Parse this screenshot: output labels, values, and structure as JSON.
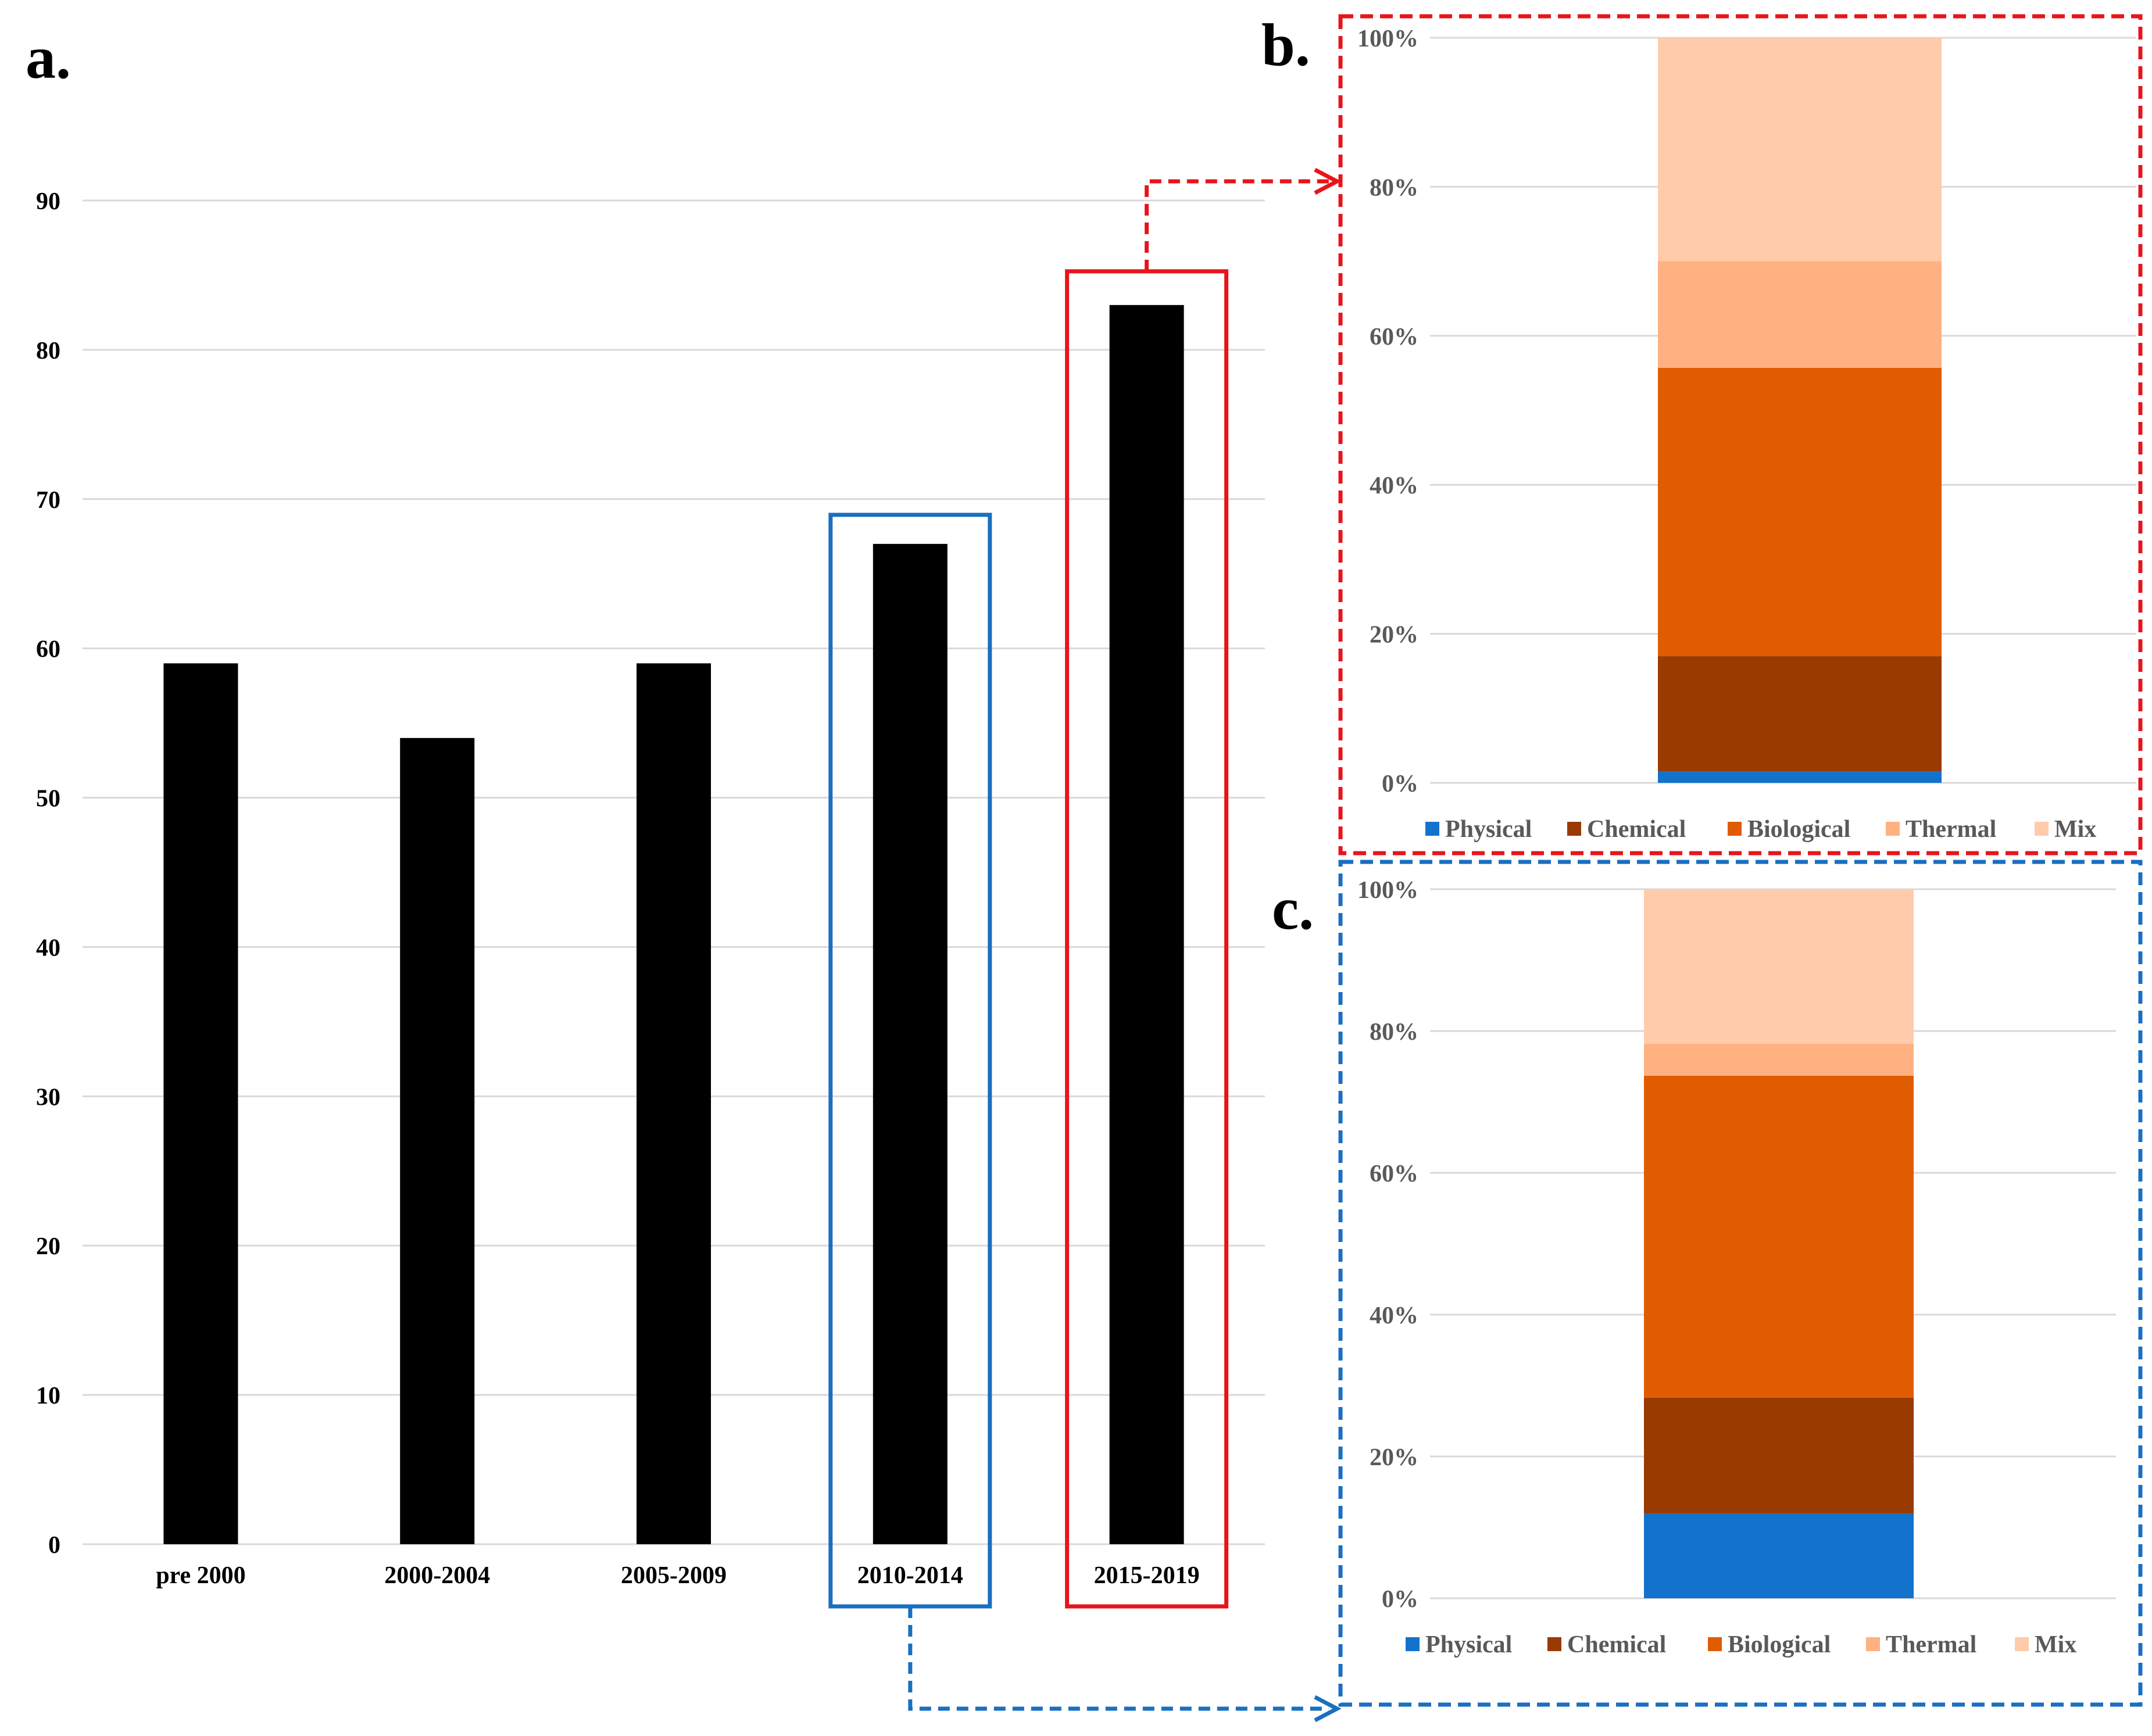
{
  "panels": {
    "a": {
      "label": "a."
    },
    "b": {
      "label": "b."
    },
    "c": {
      "label": "c."
    }
  },
  "colors": {
    "bar": "#000000",
    "grid": "#d9d9d9",
    "axis_text": "#000000",
    "pct_text": "#595959",
    "highlight_red": "#e8141b",
    "highlight_blue": "#1a6fc0",
    "Physical": "#1372cc",
    "Chemical": "#993b00",
    "Biological": "#e05c00",
    "Thermal": "#ffb182",
    "Mix": "#ffcbaa"
  },
  "chart_data": [
    {
      "id": "a",
      "type": "bar",
      "title": "",
      "xlabel": "",
      "ylabel": "",
      "categories": [
        "pre 2000",
        "2000-2004",
        "2005-2009",
        "2010-2014",
        "2015-2019"
      ],
      "values": [
        59,
        54,
        59,
        67,
        83
      ],
      "ylim": [
        0,
        90
      ],
      "yticks": [
        "0",
        "10",
        "20",
        "30",
        "40",
        "50",
        "60",
        "70",
        "80",
        "90"
      ],
      "grid": true,
      "highlights": [
        {
          "category": "2010-2014",
          "color": "blue",
          "links_to": "c"
        },
        {
          "category": "2015-2019",
          "color": "red",
          "links_to": "b"
        }
      ]
    },
    {
      "id": "b",
      "type": "bar",
      "stacked": true,
      "category": "2015-2019",
      "ylim": [
        0,
        100
      ],
      "yticks": [
        "0%",
        "20%",
        "40%",
        "60%",
        "80%",
        "100%"
      ],
      "legend_position": "bottom",
      "series": [
        {
          "name": "Physical",
          "value": 1.5
        },
        {
          "name": "Chemical",
          "value": 15.5
        },
        {
          "name": "Biological",
          "value": 38.7
        },
        {
          "name": "Thermal",
          "value": 14.3
        },
        {
          "name": "Mix",
          "value": 30.0
        }
      ]
    },
    {
      "id": "c",
      "type": "bar",
      "stacked": true,
      "category": "2010-2014",
      "ylim": [
        0,
        100
      ],
      "yticks": [
        "0%",
        "20%",
        "40%",
        "60%",
        "80%",
        "100%"
      ],
      "legend_position": "bottom",
      "series": [
        {
          "name": "Physical",
          "value": 11.9
        },
        {
          "name": "Chemical",
          "value": 16.4
        },
        {
          "name": "Biological",
          "value": 45.4
        },
        {
          "name": "Thermal",
          "value": 4.5
        },
        {
          "name": "Mix",
          "value": 21.8
        }
      ]
    }
  ]
}
